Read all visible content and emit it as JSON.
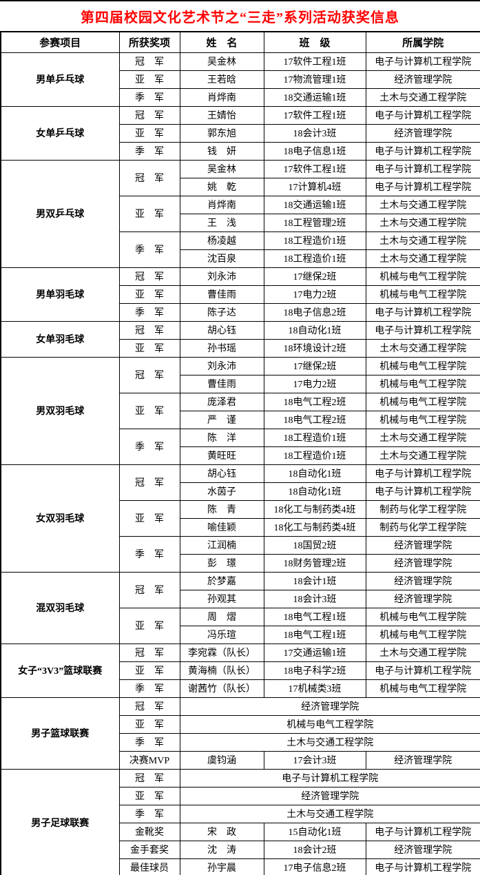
{
  "page": {
    "title": "第四届校园文化艺术节之“三走”系列活动获奖信息",
    "title_color": "#FF0000"
  },
  "table": {
    "headers": [
      "参赛项目",
      "所获奖项",
      "姓　名",
      "班　级",
      "所属学院"
    ],
    "groups": [
      {
        "event": "男单乒乓球",
        "awards": [
          {
            "label": "冠　军",
            "entries": [
              {
                "name": "吴金林",
                "class": "17软件工程1班",
                "college": "电子与计算机工程学院"
              }
            ]
          },
          {
            "label": "亚　军",
            "entries": [
              {
                "name": "王若晗",
                "class": "17物流管理1班",
                "college": "经济管理学院"
              }
            ]
          },
          {
            "label": "季　军",
            "entries": [
              {
                "name": "肖烨南",
                "class": "18交通运输1班",
                "college": "土木与交通工程学院"
              }
            ]
          }
        ]
      },
      {
        "event": "女单乒乓球",
        "awards": [
          {
            "label": "冠　军",
            "entries": [
              {
                "name": "王婧怡",
                "class": "17软件工程1班",
                "college": "电子与计算机工程学院"
              }
            ]
          },
          {
            "label": "亚　军",
            "entries": [
              {
                "name": "郭东旭",
                "class": "18会计3班",
                "college": "经济管理学院"
              }
            ]
          },
          {
            "label": "季　军",
            "entries": [
              {
                "name": "钱　妍",
                "class": "18电子信息1班",
                "college": "电子与计算机工程学院"
              }
            ]
          }
        ]
      },
      {
        "event": "男双乒乓球",
        "awards": [
          {
            "label": "冠　军",
            "entries": [
              {
                "name": "吴金林",
                "class": "17软件工程1班",
                "college": "电子与计算机工程学院"
              },
              {
                "name": "姚　乾",
                "class": "17计算机4班",
                "college": "电子与计算机工程学院"
              }
            ]
          },
          {
            "label": "亚　军",
            "entries": [
              {
                "name": "肖烨南",
                "class": "18交通运输1班",
                "college": "土木与交通工程学院"
              },
              {
                "name": "王　浅",
                "class": "18工程管理2班",
                "college": "土木与交通工程学院"
              }
            ]
          },
          {
            "label": "季　军",
            "entries": [
              {
                "name": "杨凌越",
                "class": "18工程造价1班",
                "college": "土木与交通工程学院"
              },
              {
                "name": "沈百泉",
                "class": "18工程造价1班",
                "college": "土木与交通工程学院"
              }
            ]
          }
        ]
      },
      {
        "event": "男单羽毛球",
        "awards": [
          {
            "label": "冠　军",
            "entries": [
              {
                "name": "刘永沛",
                "class": "17继保2班",
                "college": "机械与电气工程学院"
              }
            ]
          },
          {
            "label": "亚　军",
            "entries": [
              {
                "name": "曹佳雨",
                "class": "17电力2班",
                "college": "机械与电气工程学院"
              }
            ]
          },
          {
            "label": "季　军",
            "entries": [
              {
                "name": "陈子达",
                "class": "18电子信息2班",
                "college": "电子与计算机工程学院"
              }
            ]
          }
        ]
      },
      {
        "event": "女单羽毛球",
        "awards": [
          {
            "label": "冠　军",
            "entries": [
              {
                "name": "胡心钰",
                "class": "18自动化1班",
                "college": "电子与计算机工程学院"
              }
            ]
          },
          {
            "label": "亚　军",
            "entries": [
              {
                "name": "孙书瑶",
                "class": "18环境设计2班",
                "college": "土木与交通工程学院"
              }
            ]
          }
        ]
      },
      {
        "event": "男双羽毛球",
        "awards": [
          {
            "label": "冠　军",
            "entries": [
              {
                "name": "刘永沛",
                "class": "17继保2班",
                "college": "机械与电气工程学院"
              },
              {
                "name": "曹佳雨",
                "class": "17电力2班",
                "college": "机械与电气工程学院"
              }
            ]
          },
          {
            "label": "亚　军",
            "entries": [
              {
                "name": "庞泽君",
                "class": "18电气工程2班",
                "college": "机械与电气工程学院"
              },
              {
                "name": "严　谨",
                "class": "18电气工程2班",
                "college": "机械与电气工程学院"
              }
            ]
          },
          {
            "label": "季　军",
            "entries": [
              {
                "name": "陈　洋",
                "class": "18工程造价1班",
                "college": "土木与交通工程学院"
              },
              {
                "name": "黄旺旺",
                "class": "18工程造价1班",
                "college": "土木与交通工程学院"
              }
            ]
          }
        ]
      },
      {
        "event": "女双羽毛球",
        "awards": [
          {
            "label": "冠　军",
            "entries": [
              {
                "name": "胡心钰",
                "class": "18自动化1班",
                "college": "电子与计算机工程学院"
              },
              {
                "name": "水茵子",
                "class": "18自动化1班",
                "college": "电子与计算机工程学院"
              }
            ]
          },
          {
            "label": "亚　军",
            "entries": [
              {
                "name": "陈　青",
                "class": "18化工与制药类4班",
                "college": "制药与化学工程学院"
              },
              {
                "name": "喻佳颖",
                "class": "18化工与制药类4班",
                "college": "制药与化学工程学院"
              }
            ]
          },
          {
            "label": "季　军",
            "entries": [
              {
                "name": "江润楠",
                "class": "18国贸2班",
                "college": "经济管理学院"
              },
              {
                "name": "彭　璟",
                "class": "18财务管理2班",
                "college": "经济管理学院"
              }
            ]
          }
        ]
      },
      {
        "event": "混双羽毛球",
        "awards": [
          {
            "label": "冠　军",
            "entries": [
              {
                "name": "於梦嘉",
                "class": "18会计1班",
                "college": "经济管理学院"
              },
              {
                "name": "孙观其",
                "class": "18会计3班",
                "college": "经济管理学院"
              }
            ]
          },
          {
            "label": "亚　军",
            "entries": [
              {
                "name": "周　熠",
                "class": "18电气工程1班",
                "college": "机械与电气工程学院"
              },
              {
                "name": "冯乐瑄",
                "class": "18电气工程1班",
                "college": "机械与电气工程学院"
              }
            ]
          }
        ]
      },
      {
        "event": "女子“3V3”篮球联赛",
        "awards": [
          {
            "label": "冠　军",
            "entries": [
              {
                "name": "李宛霖（队长）",
                "class": "17交通运输1班",
                "college": "土木与交通工程学院"
              }
            ]
          },
          {
            "label": "亚　军",
            "entries": [
              {
                "name": "黄海楠（队长）",
                "class": "18电子科学2班",
                "college": "电子与计算机工程学院"
              }
            ]
          },
          {
            "label": "季　军",
            "entries": [
              {
                "name": "谢茜竹（队长）",
                "class": "17机械类3班",
                "college": "机械与电气工程学院"
              }
            ]
          }
        ]
      },
      {
        "event": "男子篮球联赛",
        "awards": [
          {
            "label": "冠　军",
            "entries": [
              {
                "merged": "经济管理学院"
              }
            ]
          },
          {
            "label": "亚　军",
            "entries": [
              {
                "merged": "机械与电气工程学院"
              }
            ]
          },
          {
            "label": "季　军",
            "entries": [
              {
                "merged": "土木与交通工程学院"
              }
            ]
          },
          {
            "label": "决赛MVP",
            "entries": [
              {
                "name": "虞钧涵",
                "class": "17会计3班",
                "college": "经济管理学院"
              }
            ]
          }
        ]
      },
      {
        "event": "男子足球联赛",
        "awards": [
          {
            "label": "冠　军",
            "entries": [
              {
                "merged": "电子与计算机工程学院"
              }
            ]
          },
          {
            "label": "亚　军",
            "entries": [
              {
                "merged": "经济管理学院"
              }
            ]
          },
          {
            "label": "季　军",
            "entries": [
              {
                "merged": "土木与交通工程学院"
              }
            ]
          },
          {
            "label": "金靴奖",
            "entries": [
              {
                "name": "宋　政",
                "class": "15自动化1班",
                "college": "电子与计算机工程学院"
              }
            ]
          },
          {
            "label": "金手套奖",
            "entries": [
              {
                "name": "沈　涛",
                "class": "18会计2班",
                "college": "经济管理学院"
              }
            ]
          },
          {
            "label": "最佳球员",
            "entries": [
              {
                "name": "孙宇晨",
                "class": "17电子信息2班",
                "college": "电子与计算机工程学院"
              }
            ]
          }
        ]
      }
    ]
  }
}
